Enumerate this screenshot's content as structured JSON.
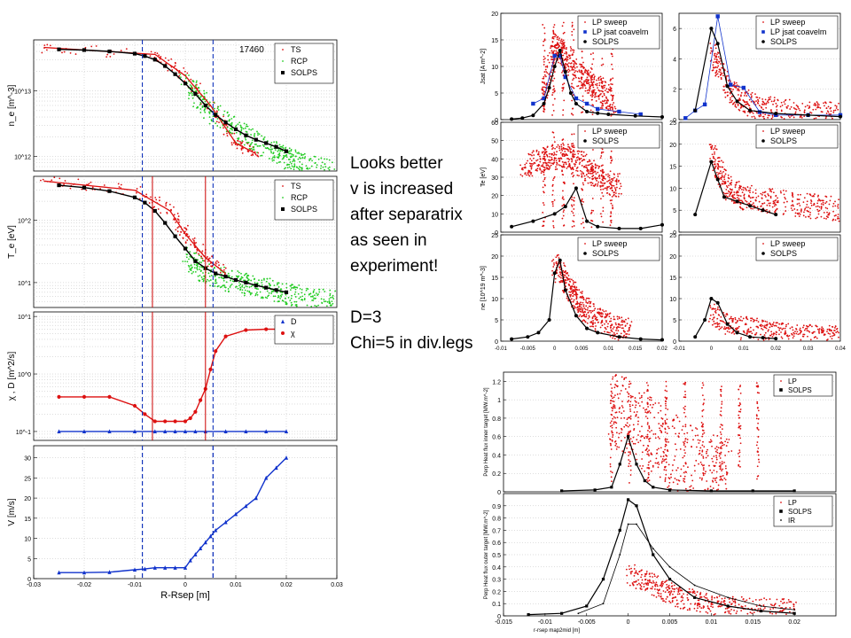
{
  "annotation": {
    "lines": [
      "Looks better",
      "v is increased",
      "after separatrix",
      "as seen in",
      "experiment!",
      "",
      "D=3",
      "Chi=5 in div.legs"
    ]
  },
  "colors": {
    "red": "#dd1111",
    "green": "#22cc22",
    "black": "#000000",
    "blue": "#1133cc",
    "vline": "#1133bb",
    "redline": "#cc0000"
  },
  "chart_data": [
    {
      "id": "ne",
      "type": "scatter",
      "ylabel": "n_e [m^-3]",
      "yscale": "log",
      "shot_label": "17460",
      "legend": [
        "TS",
        "RCP",
        "SOLPS"
      ],
      "xlim": [
        -0.03,
        0.03
      ],
      "yticks": [
        {
          "v": 10000000000000,
          "label": "10^13"
        },
        {
          "v": 1000000000000,
          "label": "10^12"
        }
      ],
      "series": [
        {
          "name": "TS",
          "color": "red",
          "marker": "dot",
          "cloud": [
            [
              -0.028,
              46000000000000.0
            ],
            [
              -0.006,
              36000000000000.0
            ],
            [
              0.0,
              17000000000000.0
            ],
            [
              0.005,
              6000000000000.0
            ],
            [
              0.01,
              1600000000000.0
            ],
            [
              0.014,
              1100000000000.0
            ]
          ]
        },
        {
          "name": "RCP",
          "color": "green",
          "marker": "dot",
          "cloud": [
            [
              0.0,
              13000000000000.0
            ],
            [
              0.005,
              5000000000000.0
            ],
            [
              0.012,
              2000000000000.0
            ],
            [
              0.018,
              1200000000000.0
            ],
            [
              0.022,
              800000000000.0
            ],
            [
              0.03,
              600000000000.0
            ]
          ]
        },
        {
          "name": "SOLPS",
          "color": "black",
          "marker": "square",
          "x": [
            -0.025,
            -0.02,
            -0.015,
            -0.01,
            -0.008,
            -0.006,
            -0.004,
            -0.002,
            0.0,
            0.002,
            0.004,
            0.006,
            0.008,
            0.01,
            0.012,
            0.014,
            0.016,
            0.018,
            0.02
          ],
          "y": [
            43000000000000.0,
            42000000000000.0,
            40000000000000.0,
            37000000000000.0,
            34000000000000.0,
            30000000000000.0,
            24000000000000.0,
            18000000000000.0,
            13000000000000.0,
            9000000000000.0,
            6000000000000.0,
            4300000000000.0,
            3300000000000.0,
            2600000000000.0,
            2100000000000.0,
            1800000000000.0,
            1600000000000.0,
            1400000000000.0,
            1200000000000.0
          ]
        }
      ]
    },
    {
      "id": "te",
      "type": "scatter",
      "ylabel": "T_e [eV]",
      "yscale": "log",
      "legend": [
        "TS",
        "RCP",
        "SOLPS"
      ],
      "xlim": [
        -0.03,
        0.03
      ],
      "yticks": [
        {
          "v": 100,
          "label": "10^2"
        },
        {
          "v": 10,
          "label": "10^1"
        }
      ],
      "series": [
        {
          "name": "TS",
          "color": "red",
          "marker": "dot",
          "cloud": [
            [
              -0.028,
              420
            ],
            [
              -0.01,
              300
            ],
            [
              -0.003,
              140
            ],
            [
              0.0,
              60
            ],
            [
              0.004,
              25
            ],
            [
              0.008,
              14
            ]
          ]
        },
        {
          "name": "RCP",
          "color": "green",
          "marker": "dot",
          "cloud": [
            [
              0.0,
              25
            ],
            [
              0.004,
              14
            ],
            [
              0.01,
              10
            ],
            [
              0.016,
              8
            ],
            [
              0.022,
              6
            ],
            [
              0.03,
              5
            ]
          ]
        },
        {
          "name": "SOLPS",
          "color": "black",
          "marker": "square",
          "x": [
            -0.025,
            -0.02,
            -0.015,
            -0.01,
            -0.008,
            -0.006,
            -0.004,
            -0.002,
            0.0,
            0.002,
            0.004,
            0.006,
            0.008,
            0.01,
            0.012,
            0.014,
            0.016,
            0.018,
            0.02
          ],
          "y": [
            360,
            330,
            290,
            230,
            190,
            140,
            90,
            55,
            35,
            22,
            17,
            14,
            12.5,
            11,
            10,
            9,
            8.3,
            7.6,
            7
          ]
        }
      ]
    },
    {
      "id": "chi",
      "type": "line",
      "ylabel": "χ , D [m^2/s]",
      "yscale": "log",
      "legend": [
        "D",
        "χ"
      ],
      "xlim": [
        -0.03,
        0.03
      ],
      "yticks": [
        {
          "v": 10,
          "label": "10^1"
        },
        {
          "v": 1,
          "label": "10^0"
        },
        {
          "v": 0.1,
          "label": "10^-1"
        }
      ],
      "series": [
        {
          "name": "D",
          "color": "blue",
          "marker": "triangle",
          "x": [
            -0.025,
            -0.02,
            -0.015,
            -0.01,
            -0.006,
            -0.004,
            -0.002,
            0.0,
            0.002,
            0.004,
            0.008,
            0.012,
            0.016,
            0.02
          ],
          "y": [
            0.1,
            0.1,
            0.1,
            0.1,
            0.1,
            0.1,
            0.1,
            0.1,
            0.1,
            0.1,
            0.1,
            0.1,
            0.1,
            0.1
          ]
        },
        {
          "name": "χ",
          "color": "red",
          "marker": "circle",
          "x": [
            -0.025,
            -0.02,
            -0.015,
            -0.01,
            -0.008,
            -0.006,
            -0.004,
            -0.002,
            0.0,
            0.001,
            0.002,
            0.003,
            0.004,
            0.005,
            0.006,
            0.008,
            0.012,
            0.016,
            0.02
          ],
          "y": [
            0.4,
            0.4,
            0.4,
            0.28,
            0.2,
            0.15,
            0.15,
            0.15,
            0.15,
            0.17,
            0.22,
            0.35,
            0.55,
            1.2,
            2.5,
            4.5,
            5.8,
            6,
            6
          ]
        }
      ]
    },
    {
      "id": "v",
      "type": "line",
      "ylabel": "V [m/s]",
      "xlabel": "R-Rsep [m]",
      "xlim": [
        -0.03,
        0.03
      ],
      "ylim": [
        0,
        33
      ],
      "yticks": [
        0,
        5,
        10,
        15,
        20,
        25,
        30
      ],
      "xticks": [
        -0.03,
        -0.02,
        -0.01,
        0,
        0.01,
        0.02,
        0.03
      ],
      "xticklabels": [
        "-0.03",
        "-0.02",
        "-0.01",
        "0",
        "0.01",
        "0.02",
        "0.03"
      ],
      "series": [
        {
          "name": "V",
          "color": "blue",
          "marker": "triangle",
          "x": [
            -0.025,
            -0.02,
            -0.015,
            -0.01,
            -0.008,
            -0.006,
            -0.004,
            -0.002,
            0.0,
            0.001,
            0.002,
            0.003,
            0.004,
            0.005,
            0.006,
            0.008,
            0.01,
            0.012,
            0.014,
            0.016,
            0.018,
            0.02
          ],
          "y": [
            1.5,
            1.5,
            1.6,
            2.2,
            2.4,
            2.7,
            2.7,
            2.7,
            2.7,
            4.5,
            6,
            7.5,
            9,
            10.5,
            12,
            14,
            16,
            18,
            20,
            25,
            27.5,
            30
          ]
        }
      ]
    }
  ],
  "vlines_dashed": [
    -0.0085,
    0.0055
  ],
  "vlines_red": [
    -0.0065,
    0.004
  ],
  "right_panels": [
    {
      "id": "jsat_in",
      "ylabel": "Jsat [A m^-2]",
      "xlim": [
        -0.01,
        0.02
      ],
      "ylim": [
        0,
        20
      ],
      "yticks": [
        0,
        5,
        10,
        15,
        20
      ],
      "legend": [
        "LP sweep",
        "LP jsat coavelm",
        "SOLPS"
      ],
      "solps_x": [
        -0.008,
        -0.006,
        -0.004,
        -0.002,
        -0.001,
        0,
        0.001,
        0.002,
        0.003,
        0.004,
        0.006,
        0.008,
        0.01,
        0.015,
        0.02
      ],
      "solps_y": [
        0.1,
        0.3,
        0.8,
        3,
        6,
        10,
        13,
        9,
        5,
        3,
        1.5,
        1.2,
        1,
        0.7,
        0.5
      ],
      "blue_x": [
        -0.004,
        -0.002,
        0.0,
        0.001,
        0.002,
        0.004,
        0.006,
        0.008,
        0.012,
        0.016
      ],
      "blue_y": [
        3,
        4,
        12,
        12,
        8,
        4,
        3,
        2,
        1.5,
        1
      ],
      "cloud": [
        [
          -0.002,
          4
        ],
        [
          0.0,
          14
        ],
        [
          0.002,
          12
        ],
        [
          0.005,
          8
        ],
        [
          0.008,
          6
        ],
        [
          0.011,
          3
        ]
      ]
    },
    {
      "id": "jsat_out",
      "ylabel": "",
      "xlim": [
        -0.01,
        0.04
      ],
      "ylim": [
        0,
        7
      ],
      "yticks": [
        0,
        2,
        4,
        6
      ],
      "legend": [
        "LP sweep",
        "LP jsat coavelm",
        "SOLPS"
      ],
      "solps_x": [
        -0.005,
        0.0,
        0.002,
        0.005,
        0.008,
        0.012,
        0.02,
        0.03,
        0.04
      ],
      "solps_y": [
        0.6,
        6,
        5,
        2.2,
        1.2,
        0.6,
        0.4,
        0.3,
        0.2
      ],
      "blue_x": [
        -0.008,
        -0.005,
        -0.002,
        0.002,
        0.006,
        0.01,
        0.015,
        0.02,
        0.03,
        0.04
      ],
      "blue_y": [
        0.1,
        0.6,
        1.0,
        6.8,
        2.3,
        2.1,
        0.5,
        0.3,
        0.3,
        0.3
      ],
      "cloud": [
        [
          0.0,
          4.5
        ],
        [
          0.005,
          2
        ],
        [
          0.012,
          1
        ],
        [
          0.02,
          0.6
        ],
        [
          0.03,
          0.4
        ],
        [
          0.04,
          0.3
        ]
      ]
    },
    {
      "id": "te_in",
      "ylabel": "Te [eV]",
      "xlim": [
        -0.01,
        0.02
      ],
      "ylim": [
        0,
        60
      ],
      "yticks": [
        0,
        10,
        20,
        30,
        40,
        50,
        60
      ],
      "legend": [
        "LP sweep",
        "SOLPS"
      ],
      "solps_x": [
        -0.008,
        -0.004,
        0.0,
        0.002,
        0.004,
        0.006,
        0.008,
        0.012,
        0.016,
        0.02
      ],
      "solps_y": [
        3,
        6,
        10,
        14,
        24,
        6,
        3,
        2,
        2,
        4
      ],
      "cloud": [
        [
          -0.006,
          35
        ],
        [
          -0.002,
          40
        ],
        [
          0.002,
          42
        ],
        [
          0.006,
          35
        ],
        [
          0.009,
          28
        ],
        [
          0.012,
          25
        ]
      ]
    },
    {
      "id": "te_out",
      "ylabel": "",
      "xlim": [
        -0.01,
        0.04
      ],
      "ylim": [
        0,
        25
      ],
      "yticks": [
        0,
        5,
        10,
        15,
        20,
        25
      ],
      "legend": [
        "LP sweep",
        "SOLPS"
      ],
      "solps_x": [
        -0.005,
        0.0,
        0.002,
        0.004,
        0.008,
        0.012,
        0.016,
        0.02
      ],
      "solps_y": [
        4,
        16,
        12,
        8,
        7,
        6,
        5,
        4
      ],
      "cloud": [
        [
          0.0,
          18
        ],
        [
          0.005,
          10
        ],
        [
          0.01,
          8
        ],
        [
          0.02,
          7
        ],
        [
          0.03,
          6
        ],
        [
          0.04,
          5
        ]
      ]
    },
    {
      "id": "ne_in",
      "ylabel": "ne [10^19 m^-3]",
      "xlim": [
        -0.01,
        0.02
      ],
      "ylim": [
        0,
        25
      ],
      "yticks": [
        0,
        5,
        10,
        15,
        20,
        25
      ],
      "legend": [
        "LP sweep",
        "SOLPS"
      ],
      "solps_x": [
        -0.008,
        -0.005,
        -0.003,
        -0.001,
        0.0,
        0.001,
        0.002,
        0.004,
        0.006,
        0.008,
        0.012,
        0.016,
        0.02
      ],
      "solps_y": [
        0.5,
        1,
        2,
        5,
        16,
        19,
        12,
        6,
        3,
        2,
        1,
        0.5,
        0.3
      ],
      "cloud": [
        [
          0.0,
          18
        ],
        [
          0.003,
          12
        ],
        [
          0.006,
          7
        ],
        [
          0.01,
          4
        ],
        [
          0.014,
          2
        ]
      ]
    },
    {
      "id": "ne_out",
      "ylabel": "",
      "xlim": [
        -0.01,
        0.04
      ],
      "ylim": [
        0,
        25
      ],
      "yticks": [
        0,
        5,
        10,
        15,
        20,
        25
      ],
      "legend": [
        "LP sweep",
        "SOLPS"
      ],
      "solps_x": [
        -0.005,
        -0.002,
        0.0,
        0.002,
        0.005,
        0.008,
        0.012,
        0.016,
        0.02
      ],
      "solps_y": [
        1,
        5,
        10,
        9,
        4,
        2,
        1,
        0.8,
        0.6
      ],
      "cloud": [
        [
          0.0,
          6
        ],
        [
          0.01,
          3
        ],
        [
          0.02,
          1.5
        ],
        [
          0.03,
          1
        ],
        [
          0.04,
          0.6
        ]
      ]
    }
  ],
  "right_xtick_in": [
    "-0.01",
    "-0.005",
    "0",
    "0.005",
    "0.01",
    "0.015",
    "0.02"
  ],
  "right_xtick_out": [
    "-0.01",
    "0",
    "0.01",
    "0.02",
    "0.03",
    "0.04"
  ],
  "heat_panels": [
    {
      "id": "heat_in",
      "ylabel": "Perp Heat flux inner target [MW.m^-2]",
      "xlim": [
        -0.015,
        0.025
      ],
      "ylim": [
        0,
        1.3
      ],
      "yticks": [
        0,
        0.2,
        0.4,
        0.6,
        0.8,
        1.0,
        1.2
      ],
      "legend": [
        "LP",
        "SOLPS"
      ],
      "solps_x": [
        -0.008,
        -0.004,
        -0.002,
        -0.001,
        0.0,
        0.001,
        0.002,
        0.003,
        0.005,
        0.01,
        0.015,
        0.02
      ],
      "solps_y": [
        0.01,
        0.02,
        0.05,
        0.3,
        0.6,
        0.3,
        0.12,
        0.05,
        0.02,
        0.01,
        0.01,
        0.01
      ],
      "cloud": [
        [
          -0.002,
          0.9
        ],
        [
          0.0,
          0.8
        ],
        [
          0.003,
          0.6
        ],
        [
          0.006,
          0.4
        ],
        [
          0.01,
          0.2
        ],
        [
          0.012,
          0.15
        ]
      ]
    },
    {
      "id": "heat_out",
      "ylabel": "Perp Heat flux outer target [MW.m^-2]",
      "xlabel": "r-rsep map2mid [m]",
      "xlim": [
        -0.015,
        0.025
      ],
      "ylim": [
        0,
        1.0
      ],
      "yticks": [
        0,
        0.1,
        0.2,
        0.3,
        0.4,
        0.5,
        0.6,
        0.7,
        0.8,
        0.9
      ],
      "xticks": [
        -0.015,
        -0.01,
        -0.005,
        0,
        0.005,
        0.01,
        0.015,
        0.02
      ],
      "xticklabels": [
        "-0.015",
        "-0.01",
        "-0.005",
        "0",
        "0.005",
        "0.01",
        "0.015",
        "0.02"
      ],
      "legend": [
        "LP",
        "SOLPS",
        "IR"
      ],
      "solps_x": [
        -0.012,
        -0.008,
        -0.005,
        -0.003,
        -0.001,
        0.0,
        0.001,
        0.003,
        0.005,
        0.008,
        0.012,
        0.016,
        0.02
      ],
      "solps_y": [
        0.01,
        0.02,
        0.08,
        0.3,
        0.7,
        0.95,
        0.9,
        0.5,
        0.3,
        0.15,
        0.08,
        0.04,
        0.02
      ],
      "ir_x": [
        -0.006,
        -0.003,
        -0.001,
        0.0,
        0.001,
        0.003,
        0.005,
        0.008,
        0.012,
        0.016,
        0.02
      ],
      "ir_y": [
        0.02,
        0.1,
        0.5,
        0.75,
        0.75,
        0.55,
        0.4,
        0.25,
        0.15,
        0.08,
        0.05
      ],
      "cloud": [
        [
          0.0,
          0.35
        ],
        [
          0.003,
          0.25
        ],
        [
          0.006,
          0.15
        ],
        [
          0.01,
          0.1
        ],
        [
          0.015,
          0.06
        ],
        [
          0.02,
          0.05
        ]
      ]
    }
  ]
}
